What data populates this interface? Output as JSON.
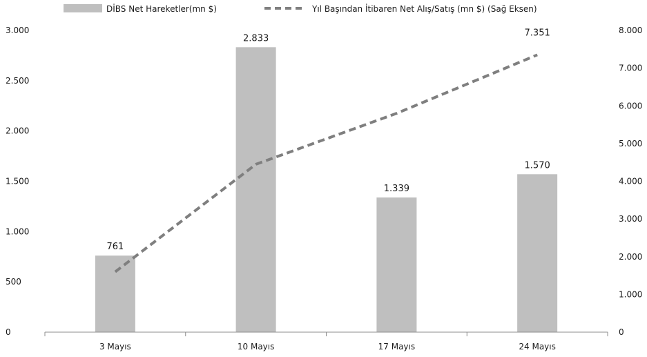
{
  "chart_data": {
    "type": "bar",
    "categories": [
      "3 Mayıs",
      "10 Mayıs",
      "17 Mayıs",
      "24 Mayıs"
    ],
    "series": [
      {
        "name": "DİBS Net Hareketler(mn $)",
        "type": "bar",
        "axis": "left",
        "values": [
          761,
          2833,
          1339,
          1570
        ],
        "data_labels": [
          "761",
          "2.833",
          "1.339",
          "1.570"
        ],
        "color": "#bfbfbf"
      },
      {
        "name": "Yıl Başından İtibaren Net Alış/Satış (mn $) (Sağ Eksen)",
        "type": "line",
        "axis": "right",
        "style": "dashed",
        "values": [
          1600,
          4450,
          5800,
          7351
        ],
        "data_labels": [
          "",
          "",
          "",
          "7.351"
        ],
        "color": "#7f7f7f"
      }
    ],
    "y_left": {
      "ylim": [
        0,
        3000
      ],
      "ticks": [
        0,
        500,
        1000,
        1500,
        2000,
        2500,
        3000
      ],
      "tick_labels": [
        "0",
        "500",
        "1.000",
        "1.500",
        "2.000",
        "2.500",
        "3.000"
      ]
    },
    "y_right": {
      "ylim": [
        0,
        8000
      ],
      "ticks": [
        0,
        1000,
        2000,
        3000,
        4000,
        5000,
        6000,
        7000,
        8000
      ],
      "tick_labels": [
        "0",
        "1.000",
        "2.000",
        "3.000",
        "4.000",
        "5.000",
        "6.000",
        "7.000",
        "8.000"
      ]
    },
    "title": "",
    "xlabel": "",
    "ylabel": "",
    "grid": false,
    "legend_position": "top"
  }
}
